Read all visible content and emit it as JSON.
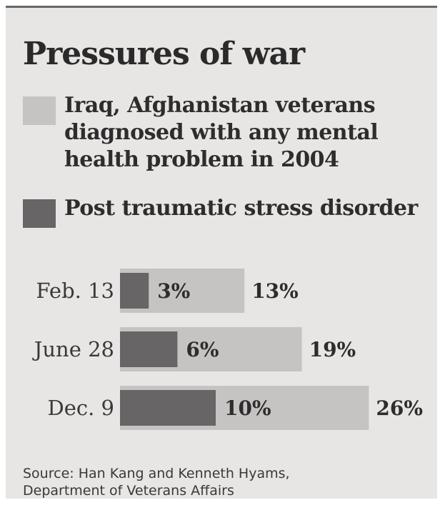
{
  "chart_data": {
    "type": "bar",
    "orientation": "horizontal",
    "title": "Pressures of war",
    "categories": [
      "Feb. 13",
      "June 28",
      "Dec. 9"
    ],
    "series": [
      {
        "name": "Iraq, Afghanistan veterans diagnosed with any mental health problem  in 2004",
        "values": [
          13,
          19,
          26
        ],
        "labels": [
          "13%",
          "19%",
          "26%"
        ],
        "color": "#c6c4c3"
      },
      {
        "name": "Post traumatic stress disorder",
        "values": [
          3,
          6,
          10
        ],
        "labels": [
          "3%",
          "6%",
          "10%"
        ],
        "color": "#676565"
      }
    ],
    "layout": "overlapping",
    "grid": false,
    "legend_position": "top"
  },
  "source": {
    "line1": "Source: Han Kang and Kenneth Hyams,",
    "line2": "Department of Veterans Affairs"
  },
  "colors": {
    "background": "#e8e6e4",
    "top_rule": "#6a6867",
    "text": "#2b2a2a"
  }
}
